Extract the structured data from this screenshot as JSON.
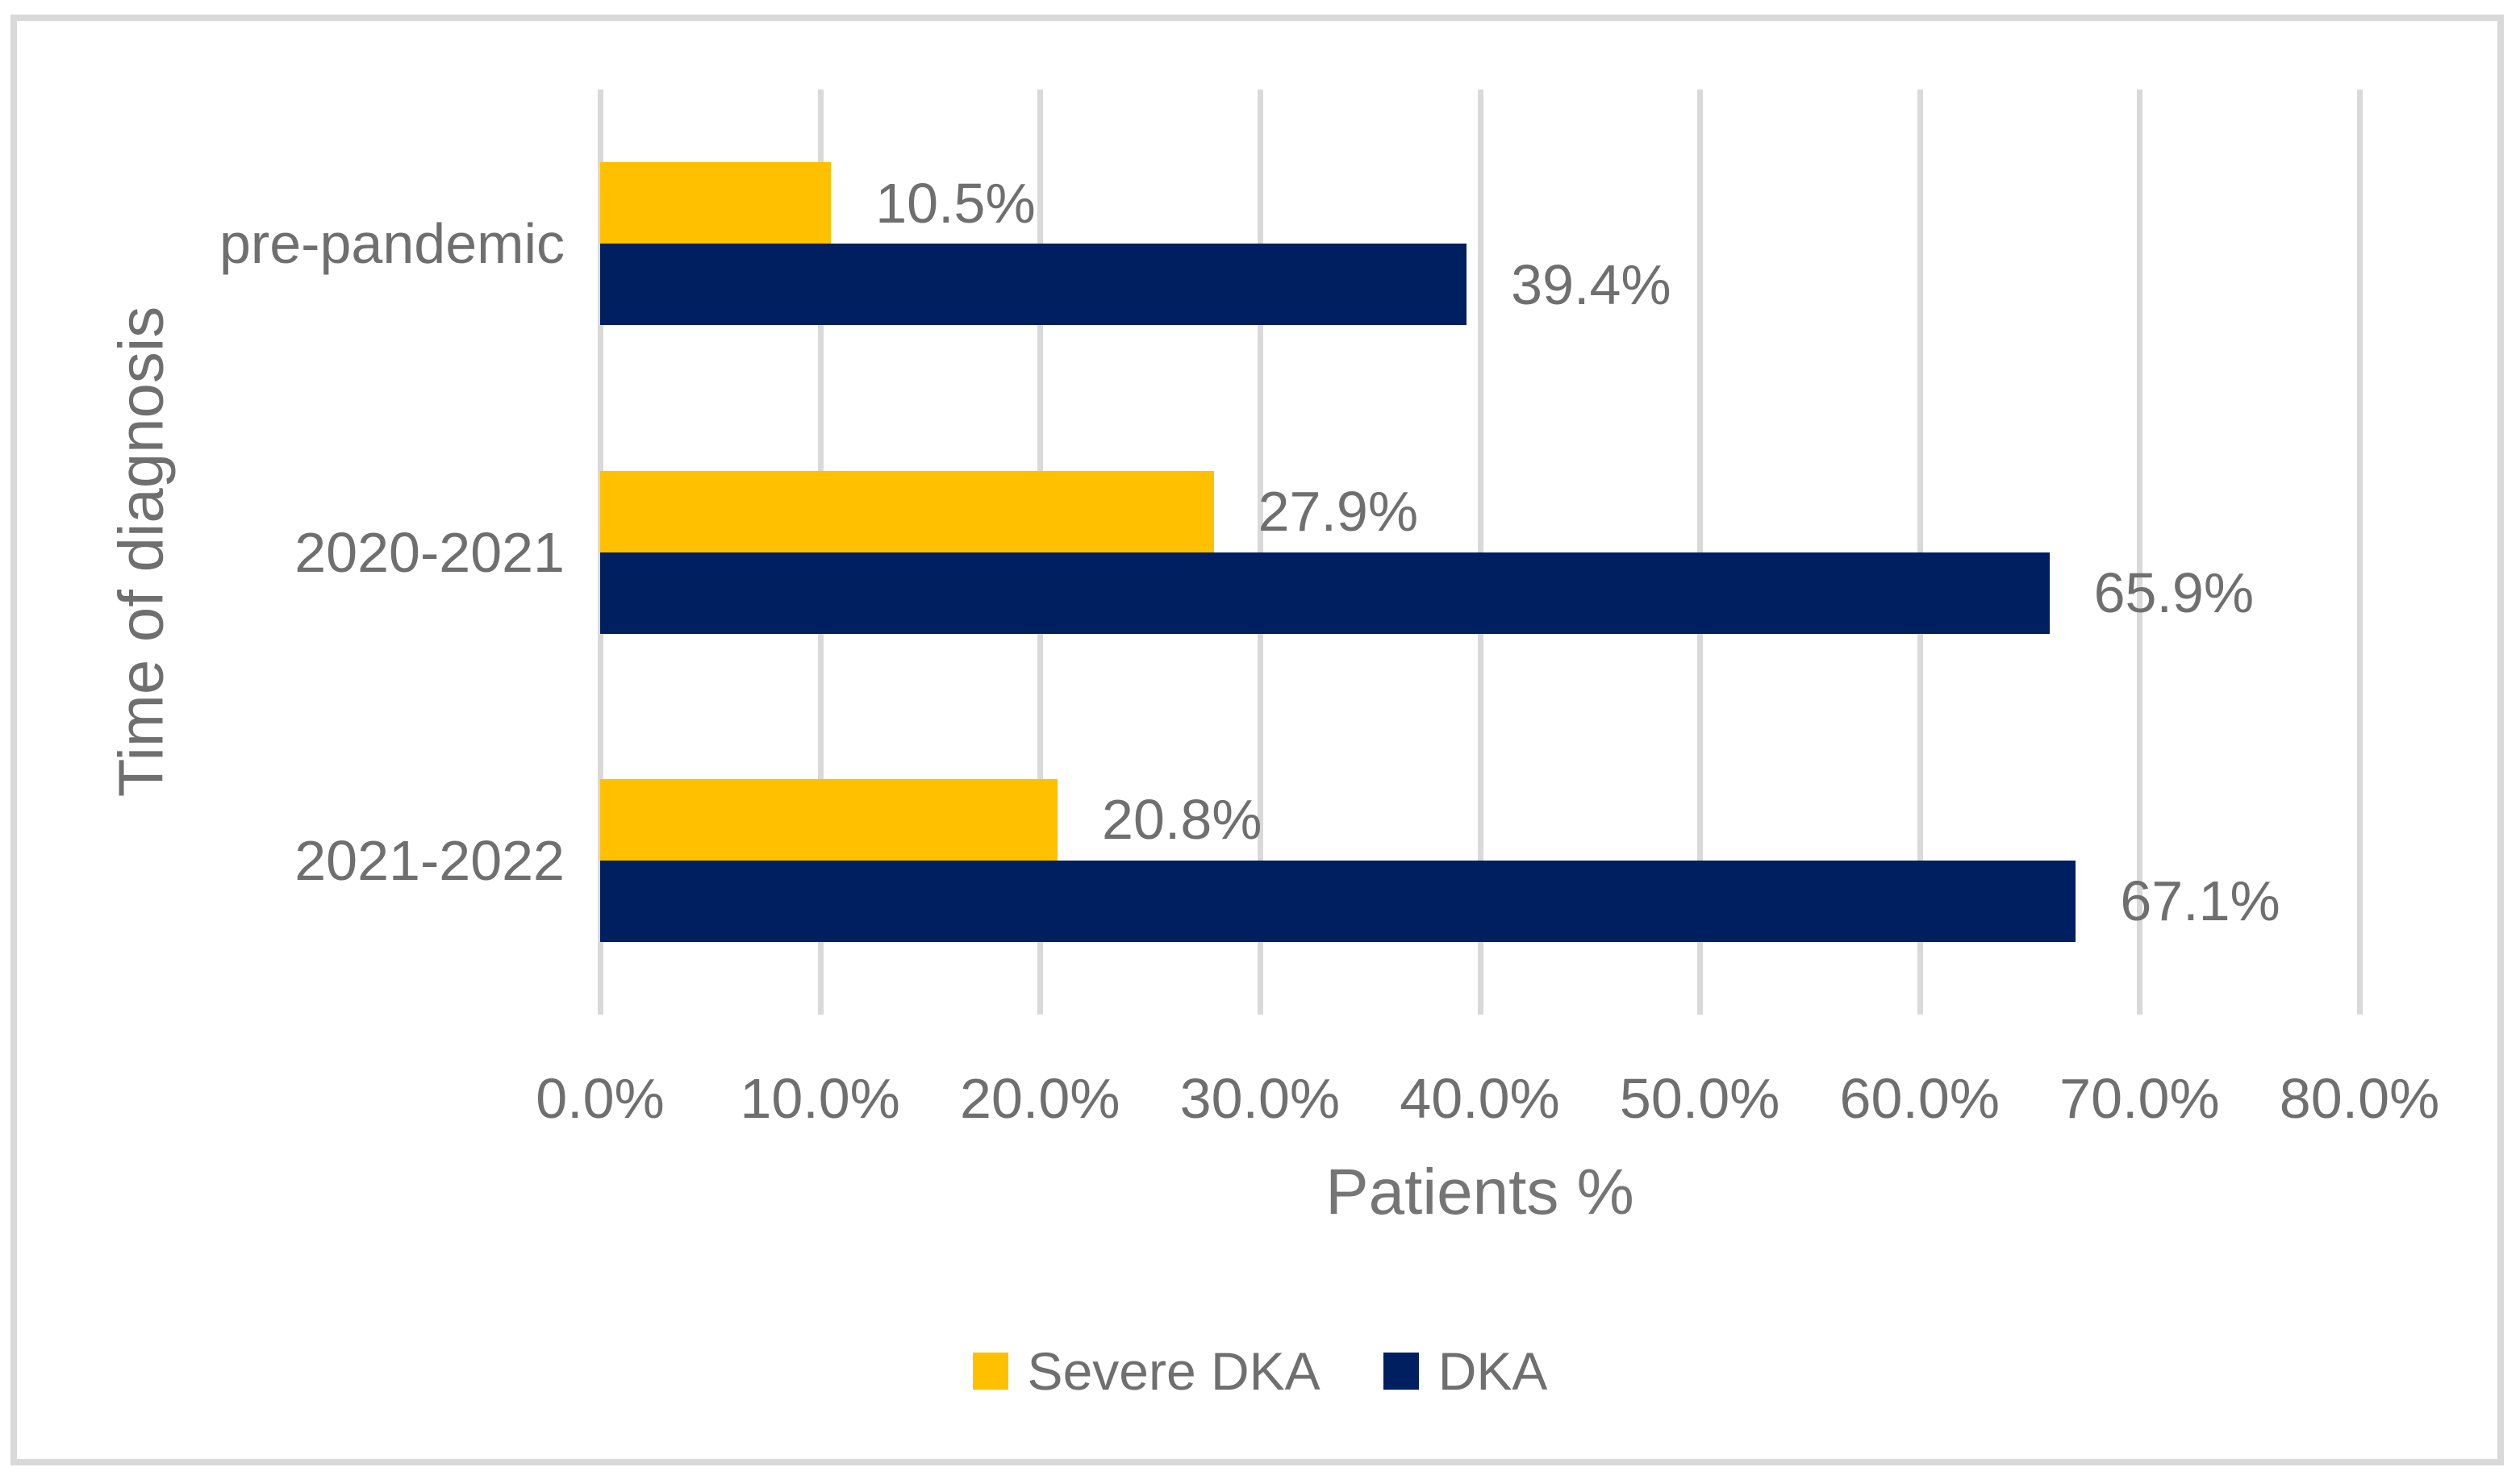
{
  "chart_data": {
    "type": "bar",
    "orientation": "horizontal",
    "categories": [
      "pre-pandemic",
      "2020-2021",
      "2021-2022"
    ],
    "series": [
      {
        "name": "Severe DKA",
        "color": "#FFC000",
        "values": [
          10.5,
          27.9,
          20.8
        ],
        "data_labels": [
          "10.5%",
          "27.9%",
          "20.8%"
        ]
      },
      {
        "name": "DKA",
        "color": "#001F61",
        "values": [
          39.4,
          65.9,
          67.1
        ],
        "data_labels": [
          "39.4%",
          "65.9%",
          "67.1%"
        ]
      }
    ],
    "xlabel": "Patients %",
    "ylabel": "Time of diagnosis",
    "xlim": [
      0,
      80
    ],
    "xtick_values": [
      0,
      10,
      20,
      30,
      40,
      50,
      60,
      70,
      80
    ],
    "xtick_labels": [
      "0.0%",
      "10.0%",
      "20.0%",
      "30.0%",
      "40.0%",
      "50.0%",
      "60.0%",
      "70.0%",
      "80.0%"
    ],
    "grid": "vertical",
    "legend_position": "bottom",
    "data_label_color": "#6f6f6f",
    "gridline_color": "#D9D9D9",
    "frame_border_color": "#D9D9D9",
    "background_color": "#FFFFFF"
  }
}
